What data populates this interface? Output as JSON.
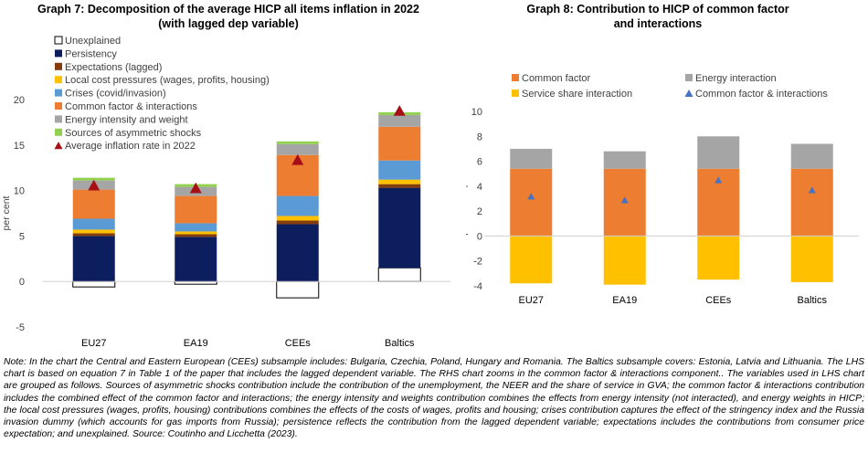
{
  "left": {
    "title_line1": "Graph 7: Decomposition of the average HICP all items inflation in 2022",
    "title_line2": "(with lagged dep variable)",
    "ylabel": "per cent",
    "ylim": [
      -5,
      20
    ],
    "yticks": [
      -5,
      0,
      5,
      10,
      15,
      20
    ],
    "legend": [
      {
        "label": "Unexplained",
        "color": "#ffffff",
        "kind": "box"
      },
      {
        "label": "Persistency",
        "color": "#0d1e5e",
        "kind": "box"
      },
      {
        "label": "Expectations (lagged)",
        "color": "#843c0b",
        "kind": "box"
      },
      {
        "label": "Local cost pressures (wages, profits, housing)",
        "color": "#ffc000",
        "kind": "box"
      },
      {
        "label": "Crises (covid/invasion)",
        "color": "#5b9bd5",
        "kind": "box"
      },
      {
        "label": "Common factor & interactions",
        "color": "#ed7d31",
        "kind": "box"
      },
      {
        "label": "Energy intensity and weight",
        "color": "#a5a5a5",
        "kind": "box"
      },
      {
        "label": "Sources of asymmetric shocks",
        "color": "#92d050",
        "kind": "box"
      },
      {
        "label": "Average inflation rate in 2022",
        "color": "#a50f15",
        "kind": "triangle"
      }
    ]
  },
  "right": {
    "title_line1": "Graph 8: Contribution to HICP of common factor",
    "title_line2": "and interactions",
    "ylabel": "percentate points",
    "ylim": [
      -4,
      10
    ],
    "yticks": [
      -4,
      -2,
      0,
      2,
      4,
      6,
      8,
      10
    ],
    "legend": [
      {
        "label": "Common factor",
        "color": "#ed7d31",
        "kind": "box"
      },
      {
        "label": "Energy interaction",
        "color": "#a5a5a5",
        "kind": "box"
      },
      {
        "label": "Service share interaction",
        "color": "#ffc000",
        "kind": "box"
      },
      {
        "label": "Common factor & interactions",
        "color": "#4472c4",
        "kind": "triangle"
      }
    ]
  },
  "chart_data": [
    {
      "type": "bar",
      "stacked": true,
      "title": "Graph 7: Decomposition of the average HICP all items inflation in 2022 (with lagged dep variable)",
      "ylabel": "per cent",
      "ylim": [
        -5,
        20
      ],
      "categories": [
        "EU27",
        "EA19",
        "CEEs",
        "Baltics"
      ],
      "series": [
        {
          "name": "Unexplained",
          "color": "#ffffff",
          "values": [
            -0.6,
            -0.3,
            -1.8,
            1.5
          ]
        },
        {
          "name": "Persistency",
          "color": "#0d1e5e",
          "values": [
            5.0,
            4.9,
            6.3,
            8.8
          ]
        },
        {
          "name": "Expectations (lagged)",
          "color": "#843c0b",
          "values": [
            0.3,
            0.3,
            0.4,
            0.4
          ]
        },
        {
          "name": "Local cost pressures (wages, profits, housing)",
          "color": "#ffc000",
          "values": [
            0.4,
            0.3,
            0.5,
            0.5
          ]
        },
        {
          "name": "Crises (covid/invasion)",
          "color": "#5b9bd5",
          "values": [
            1.2,
            0.9,
            2.2,
            2.1
          ]
        },
        {
          "name": "Common factor & interactions",
          "color": "#ed7d31",
          "values": [
            3.2,
            3.0,
            4.5,
            3.7
          ]
        },
        {
          "name": "Energy intensity and weight",
          "color": "#a5a5a5",
          "values": [
            1.0,
            1.0,
            1.2,
            1.3
          ]
        },
        {
          "name": "Sources of asymmetric shocks",
          "color": "#92d050",
          "values": [
            0.3,
            0.3,
            0.3,
            0.3
          ]
        }
      ],
      "markers": {
        "name": "Average inflation rate in 2022",
        "color": "#a50f15",
        "values": [
          10.6,
          10.3,
          13.4,
          18.8
        ]
      }
    },
    {
      "type": "bar",
      "stacked": true,
      "title": "Graph 8: Contribution to HICP of common factor and interactions",
      "ylabel": "percentate points",
      "ylim": [
        -4,
        10
      ],
      "categories": [
        "EU27",
        "EA19",
        "CEEs",
        "Baltics"
      ],
      "series": [
        {
          "name": "Common factor",
          "color": "#ed7d31",
          "values": [
            5.4,
            5.4,
            5.4,
            5.4
          ]
        },
        {
          "name": "Energy interaction",
          "color": "#a5a5a5",
          "values": [
            1.6,
            1.4,
            2.6,
            2.0
          ]
        },
        {
          "name": "Service share interaction",
          "color": "#ffc000",
          "values": [
            -3.8,
            -3.9,
            -3.5,
            -3.7
          ]
        }
      ],
      "markers": {
        "name": "Common factor & interactions",
        "color": "#4472c4",
        "values": [
          3.2,
          2.9,
          4.5,
          3.7
        ]
      }
    }
  ],
  "note": "Note: In the chart the Central and Eastern European (CEEs) subsample includes: Bulgaria, Czechia, Poland, Hungary and Romania. The Baltics subsample covers: Estonia, Latvia and Lithuania. The LHS chart is based on equation 7 in Table 1 of the paper that includes the lagged dependent variable. The RHS chart zooms in the common factor & interactions component.. The variables used in LHS chart are grouped as follows. Sources of asymmetric shocks contribution include the contribution of the unemployment, the NEER and the share of service in GVA; the common factor & interactions contribution includes the combined effect of the common factor and interactions; the energy intensity and weights contribution combines the effects from energy intensity (not interacted), and energy weights in HICP; the local cost pressures (wages, profits, housing) contributions combines the effects of the costs of wages, profits and housing; crises contribution captures the effect of the stringency index and the Russia invasion dummy (which accounts for gas imports from Russia); persistence reflects the contribution from the lagged dependent variable; expectations includes the contributions from consumer price expectation; and unexplained. Source: Coutinho and Licchetta (2023)."
}
